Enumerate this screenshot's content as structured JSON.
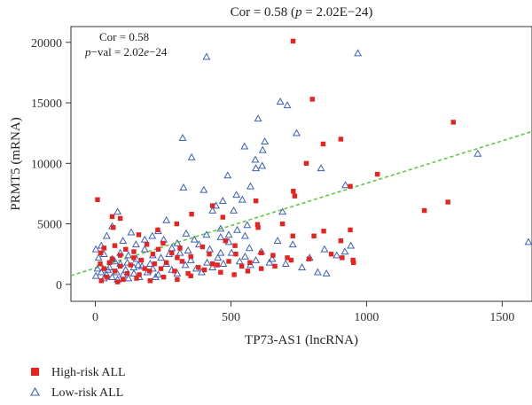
{
  "chart_data": {
    "type": "scatter",
    "title": "Cor = 0.58 (p = 2.02E−24)",
    "title_parts": [
      "Cor = 0.58 (",
      "p",
      " = 2.02E−24)"
    ],
    "xlabel": "TP73-AS1 (lncRNA)",
    "ylabel": "PRMT5 (mRNA)",
    "xlim": [
      -90,
      1610
    ],
    "ylim": [
      -1400,
      21300
    ],
    "x_ticks": [
      0,
      500,
      1000,
      1500
    ],
    "y_ticks": [
      0,
      5000,
      10000,
      15000,
      20000
    ],
    "grid": false,
    "legend_position": "bottom-left, outside plot",
    "annotation": {
      "line1": "Cor = 0.58",
      "line2_parts": [
        "p",
        "−val = 2.02",
        "e",
        "−24"
      ]
    },
    "trend_line": {
      "style": "dashed",
      "color": "#5cc93e",
      "x": [
        -90,
        1610
      ],
      "y": [
        720,
        12630
      ]
    },
    "series": [
      {
        "name": "High-risk ALL",
        "marker": "filled-square",
        "color": "#e8231f",
        "points": [
          [
            729,
            20100
          ],
          [
            800,
            15300
          ],
          [
            1320,
            13400
          ],
          [
            840,
            11600
          ],
          [
            905,
            12000
          ],
          [
            778,
            10000
          ],
          [
            1040,
            9100
          ],
          [
            940,
            8100
          ],
          [
            730,
            7700
          ],
          [
            735,
            7300
          ],
          [
            592,
            6900
          ],
          [
            8,
            7000
          ],
          [
            432,
            6500
          ],
          [
            1300,
            6800
          ],
          [
            1213,
            6100
          ],
          [
            355,
            5800
          ],
          [
            62,
            5600
          ],
          [
            470,
            5550
          ],
          [
            92,
            5450
          ],
          [
            690,
            5000
          ],
          [
            598,
            4950
          ],
          [
            300,
            5000
          ],
          [
            66,
            4700
          ],
          [
            230,
            4500
          ],
          [
            600,
            4700
          ],
          [
            842,
            4400
          ],
          [
            940,
            4500
          ],
          [
            728,
            4000
          ],
          [
            806,
            4000
          ],
          [
            905,
            3600
          ],
          [
            480,
            3600
          ],
          [
            515,
            3200
          ],
          [
            395,
            3100
          ],
          [
            160,
            4100
          ],
          [
            190,
            3300
          ],
          [
            250,
            3400
          ],
          [
            312,
            3000
          ],
          [
            72,
            3200
          ],
          [
            32,
            3000
          ],
          [
            112,
            2900
          ],
          [
            20,
            2600
          ],
          [
            142,
            2700
          ],
          [
            92,
            2400
          ],
          [
            212,
            2500
          ],
          [
            282,
            2600
          ],
          [
            352,
            2300
          ],
          [
            420,
            2500
          ],
          [
            518,
            2500
          ],
          [
            612,
            2600
          ],
          [
            655,
            2400
          ],
          [
            708,
            2200
          ],
          [
            870,
            2500
          ],
          [
            910,
            2200
          ],
          [
            950,
            2000
          ],
          [
            952,
            1800
          ],
          [
            788,
            2100
          ],
          [
            722,
            2000
          ],
          [
            570,
            1800
          ],
          [
            540,
            1500
          ],
          [
            450,
            1600
          ],
          [
            380,
            1400
          ],
          [
            320,
            1900
          ],
          [
            262,
            1800
          ],
          [
            218,
            1700
          ],
          [
            170,
            2000
          ],
          [
            130,
            1600
          ],
          [
            92,
            1500
          ],
          [
            52,
            1800
          ],
          [
            18,
            1700
          ],
          [
            32,
            1300
          ],
          [
            72,
            1100
          ],
          [
            118,
            900
          ],
          [
            162,
            800
          ],
          [
            200,
            1100
          ],
          [
            242,
            1300
          ],
          [
            292,
            1100
          ],
          [
            342,
            900
          ],
          [
            402,
            1200
          ],
          [
            462,
            1000
          ],
          [
            512,
            800
          ],
          [
            562,
            1100
          ],
          [
            612,
            1300
          ],
          [
            662,
            1500
          ],
          [
            42,
            600
          ],
          [
            102,
            400
          ],
          [
            152,
            500
          ],
          [
            202,
            300
          ],
          [
            252,
            600
          ],
          [
            302,
            400
          ],
          [
            352,
            700
          ],
          [
            22,
            300
          ],
          [
            82,
            200
          ],
          [
            182,
            1300
          ],
          [
            432,
            1700
          ],
          [
            492,
            1900
          ],
          [
            302,
            2200
          ],
          [
            142,
            2200
          ],
          [
            62,
            2100
          ],
          [
            232,
            2900
          ]
        ]
      },
      {
        "name": "Low-risk ALL",
        "marker": "open-triangle",
        "color": "#3a5fbe",
        "points": [
          [
            968,
            19100
          ],
          [
            410,
            18800
          ],
          [
            682,
            15100
          ],
          [
            708,
            14800
          ],
          [
            600,
            13700
          ],
          [
            742,
            12500
          ],
          [
            322,
            12100
          ],
          [
            550,
            11400
          ],
          [
            1410,
            10800
          ],
          [
            625,
            11800
          ],
          [
            617,
            11100
          ],
          [
            590,
            10300
          ],
          [
            355,
            10500
          ],
          [
            832,
            9600
          ],
          [
            615,
            9800
          ],
          [
            592,
            9600
          ],
          [
            488,
            9000
          ],
          [
            922,
            8200
          ],
          [
            325,
            8000
          ],
          [
            572,
            8100
          ],
          [
            400,
            7800
          ],
          [
            542,
            7000
          ],
          [
            520,
            7400
          ],
          [
            470,
            6900
          ],
          [
            690,
            6000
          ],
          [
            510,
            6100
          ],
          [
            445,
            6500
          ],
          [
            432,
            6100
          ],
          [
            1597,
            3500
          ],
          [
            942,
            3200
          ],
          [
            920,
            2700
          ],
          [
            845,
            2900
          ],
          [
            890,
            2400
          ],
          [
            790,
            2200
          ],
          [
            728,
            3300
          ],
          [
            672,
            3600
          ],
          [
            652,
            2100
          ],
          [
            612,
            2700
          ],
          [
            568,
            3000
          ],
          [
            552,
            4000
          ],
          [
            523,
            4500
          ],
          [
            560,
            4900
          ],
          [
            492,
            4100
          ],
          [
            462,
            4600
          ],
          [
            410,
            4100
          ],
          [
            365,
            3700
          ],
          [
            335,
            4200
          ],
          [
            312,
            2600
          ],
          [
            282,
            3000
          ],
          [
            262,
            5300
          ],
          [
            232,
            4400
          ],
          [
            210,
            4000
          ],
          [
            182,
            3700
          ],
          [
            150,
            3300
          ],
          [
            132,
            4300
          ],
          [
            102,
            3600
          ],
          [
            82,
            6000
          ],
          [
            62,
            4800
          ],
          [
            42,
            4000
          ],
          [
            22,
            3200
          ],
          [
            2,
            2900
          ],
          [
            12,
            2200
          ],
          [
            32,
            2500
          ],
          [
            62,
            2100
          ],
          [
            92,
            1700
          ],
          [
            112,
            1200
          ],
          [
            142,
            900
          ],
          [
            162,
            600
          ],
          [
            192,
            1000
          ],
          [
            212,
            1300
          ],
          [
            232,
            800
          ],
          [
            262,
            1700
          ],
          [
            282,
            1200
          ],
          [
            302,
            900
          ],
          [
            332,
            1600
          ],
          [
            352,
            2000
          ],
          [
            372,
            1300
          ],
          [
            392,
            1000
          ],
          [
            412,
            1800
          ],
          [
            432,
            1400
          ],
          [
            452,
            2200
          ],
          [
            472,
            1700
          ],
          [
            502,
            2600
          ],
          [
            532,
            1900
          ],
          [
            552,
            2300
          ],
          [
            572,
            1600
          ],
          [
            592,
            2000
          ],
          [
            642,
            1800
          ],
          [
            702,
            1700
          ],
          [
            762,
            1400
          ],
          [
            820,
            1000
          ],
          [
            852,
            900
          ],
          [
            22,
            1000
          ],
          [
            42,
            800
          ],
          [
            62,
            600
          ],
          [
            82,
            400
          ],
          [
            102,
            800
          ],
          [
            122,
            500
          ],
          [
            52,
            1400
          ],
          [
            72,
            1900
          ],
          [
            92,
            2600
          ],
          [
            122,
            2400
          ],
          [
            152,
            2100
          ],
          [
            182,
            2900
          ],
          [
            212,
            2400
          ],
          [
            242,
            2200
          ],
          [
            272,
            2500
          ],
          [
            302,
            3400
          ],
          [
            342,
            2800
          ],
          [
            382,
            3300
          ],
          [
            422,
            2900
          ],
          [
            462,
            2600
          ],
          [
            492,
            3500
          ],
          [
            252,
            3700
          ],
          [
            202,
            1700
          ],
          [
            172,
            1500
          ],
          [
            142,
            1400
          ],
          [
            32,
            500
          ],
          [
            8,
            1300
          ],
          [
            2,
            700
          ],
          [
            46,
            1200
          ],
          [
            78,
            1000
          ],
          [
            118,
            1800
          ],
          [
            158,
            1600
          ],
          [
            222,
            600
          ],
          [
            462,
            3900
          ]
        ]
      }
    ]
  }
}
